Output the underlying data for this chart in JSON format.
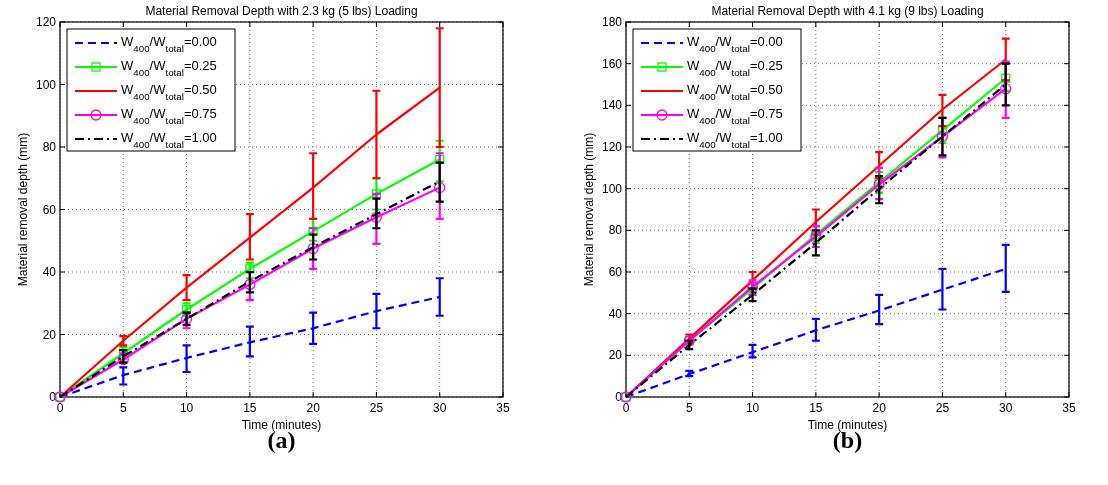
{
  "chart_data": [
    {
      "type": "line",
      "title": "Material Removal Depth with 2.3 kg (5 lbs) Loading",
      "xlabel": "Time (minutes)",
      "ylabel": "Material removal depth (mm)",
      "x": [
        0,
        5,
        10,
        15,
        20,
        25,
        30
      ],
      "xlim": [
        0,
        35
      ],
      "xticks": [
        0,
        5,
        10,
        15,
        20,
        25,
        30,
        35
      ],
      "ylim": [
        0,
        120
      ],
      "yticks": [
        0,
        20,
        40,
        60,
        80,
        100,
        120
      ],
      "grid": true,
      "legend": "top left",
      "annotations": [
        "(a)"
      ],
      "series": [
        {
          "name": "W$_{400}$/W$_{total}$=0.00",
          "color": "#0000ff",
          "line_style": "dashed",
          "marker": "none",
          "values": [
            0,
            7,
            12.5,
            17.5,
            22,
            27.5,
            32
          ],
          "errors": [
            null,
            [
              4,
              9.5
            ],
            [
              8,
              16.5
            ],
            [
              13,
              22.5
            ],
            [
              17,
              27
            ],
            [
              22,
              33
            ],
            [
              26,
              38
            ]
          ]
        },
        {
          "name": "W$_{400}$/W$_{total}$=0.25",
          "color": "#00ff00",
          "line_style": "solid",
          "marker": "square",
          "values": [
            0,
            14,
            28,
            41,
            53,
            65,
            76
          ],
          "errors": [
            null,
            [
              12,
              16
            ],
            [
              26,
              30
            ],
            [
              38,
              43
            ],
            [
              50,
              57
            ],
            [
              60,
              70
            ],
            [
              69,
              82
            ]
          ]
        },
        {
          "name": "W$_{400}$/W$_{total}$=0.50",
          "color": "#ff0000",
          "line_style": "solid",
          "marker": "none",
          "values": [
            0,
            18,
            35,
            51,
            67,
            84,
            99
          ],
          "errors": [
            null,
            [
              16.5,
              19.5
            ],
            [
              31,
              39
            ],
            [
              44,
              58.5
            ],
            [
              57,
              78
            ],
            [
              70,
              98
            ],
            [
              80,
              118
            ]
          ]
        },
        {
          "name": "W$_{400}$/W$_{total}$=0.75",
          "color": "#ff00ff",
          "line_style": "solid",
          "marker": "circle",
          "values": [
            0,
            12,
            25,
            36,
            47.5,
            57.5,
            67
          ],
          "errors": [
            null,
            [
              11,
              14
            ],
            [
              22,
              27
            ],
            [
              31,
              40
            ],
            [
              41,
              54
            ],
            [
              49,
              65
            ],
            [
              57,
              78
            ]
          ]
        },
        {
          "name": "W$_{400}$/W$_{total}$=1.00",
          "color": "#000000",
          "line_style": "dashdot",
          "marker": "none",
          "values": [
            0,
            13,
            25,
            37,
            48,
            58.5,
            69
          ],
          "errors": [
            null,
            [
              11,
              15
            ],
            [
              23,
              27
            ],
            [
              33.5,
              40
            ],
            [
              44,
              52
            ],
            [
              54,
              63.5
            ],
            [
              62.5,
              75
            ]
          ]
        }
      ]
    },
    {
      "type": "line",
      "title": "Material Removal Depth with 4.1 kg (9 lbs) Loading",
      "xlabel": "Time (minutes)",
      "ylabel": "Material removal depth (mm)",
      "x": [
        0,
        5,
        10,
        15,
        20,
        25,
        30
      ],
      "xlim": [
        0,
        35
      ],
      "xticks": [
        0,
        5,
        10,
        15,
        20,
        25,
        30,
        35
      ],
      "ylim": [
        0,
        180
      ],
      "yticks": [
        0,
        20,
        40,
        60,
        80,
        100,
        120,
        140,
        160,
        180
      ],
      "grid": true,
      "legend": "top left",
      "annotations": [
        "(b)"
      ],
      "series": [
        {
          "name": "W$_{400}$/W$_{total}$=0.00",
          "color": "#0000ff",
          "line_style": "dashed",
          "marker": "none",
          "values": [
            0,
            11,
            21.5,
            32,
            41.5,
            51.5,
            61.5
          ],
          "errors": [
            null,
            [
              10,
              12.5
            ],
            [
              19,
              25
            ],
            [
              27,
              37.5
            ],
            [
              35,
              49
            ],
            [
              42,
              61.5
            ],
            [
              50.5,
              73
            ]
          ]
        },
        {
          "name": "W$_{400}$/W$_{total}$=0.25",
          "color": "#00ff00",
          "line_style": "solid",
          "marker": "square",
          "values": [
            0,
            27,
            52,
            78,
            103,
            128,
            153
          ],
          "errors": [
            null,
            null,
            [
              49,
              55
            ],
            [
              74,
              82
            ],
            [
              98,
              108
            ],
            [
              122,
              134
            ],
            [
              147,
              160
            ]
          ]
        },
        {
          "name": "W$_{400}$/W$_{total}$=0.50",
          "color": "#ff0000",
          "line_style": "solid",
          "marker": "none",
          "values": [
            0,
            28,
            56,
            84,
            111,
            138,
            162
          ],
          "errors": [
            null,
            [
              26,
              30
            ],
            [
              52,
              60
            ],
            [
              78,
              90
            ],
            [
              105,
              117.5
            ],
            [
              130,
              145
            ],
            [
              152,
              172
            ]
          ]
        },
        {
          "name": "W$_{400}$/W$_{total}$=0.75",
          "color": "#ff00ff",
          "line_style": "solid",
          "marker": "circle",
          "values": [
            0,
            27,
            53,
            77,
            102,
            125,
            148
          ],
          "errors": [
            null,
            null,
            [
              49,
              56
            ],
            [
              72,
              82
            ],
            [
              95,
              110
            ],
            [
              115,
              134
            ],
            [
              134,
              161
            ]
          ]
        },
        {
          "name": "W$_{400}$/W$_{total}$=1.00",
          "color": "#000000",
          "line_style": "dashdot",
          "marker": "none",
          "values": [
            0,
            25,
            49,
            74,
            100,
            125,
            150
          ],
          "errors": [
            null,
            [
              23,
              27
            ],
            [
              46,
              52
            ],
            [
              68,
              80
            ],
            [
              93,
              106
            ],
            [
              116,
              134
            ],
            [
              140,
              160
            ]
          ]
        }
      ]
    }
  ]
}
